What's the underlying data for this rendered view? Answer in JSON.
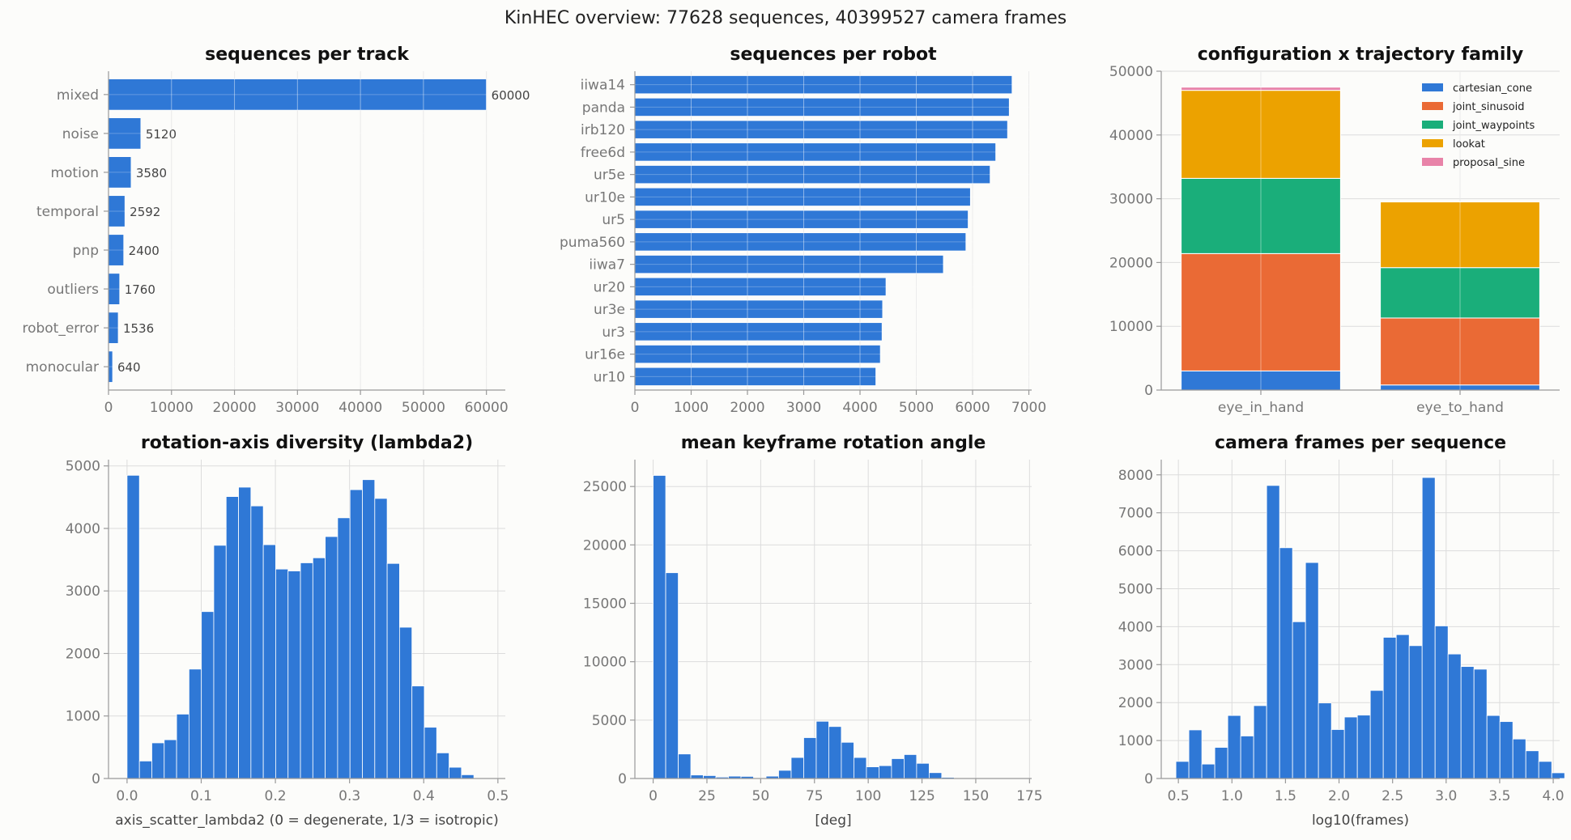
{
  "suptitle": "KinHEC overview: 77628 sequences, 40399527 camera frames",
  "colors": {
    "bar": "#2f78d6",
    "cartesian_cone": "#2f78d6",
    "joint_sinusoid": "#ea6a35",
    "joint_waypoints": "#1aae7a",
    "lookat": "#eca200",
    "proposal_sine": "#e883a8"
  },
  "chart_data": [
    {
      "type": "bar",
      "orientation": "horizontal",
      "title": "sequences per track",
      "categories": [
        "mixed",
        "noise",
        "motion",
        "temporal",
        "pnp",
        "outliers",
        "robot_error",
        "monocular"
      ],
      "values": [
        60000,
        5120,
        3580,
        2592,
        2400,
        1760,
        1536,
        640
      ],
      "data_labels": [
        "60000",
        "5120",
        "3580",
        "2592",
        "2400",
        "1760",
        "1536",
        "640"
      ],
      "xlim": [
        0,
        63000
      ],
      "xticks": [
        0,
        10000,
        20000,
        30000,
        40000,
        50000,
        60000
      ],
      "xtick_labels": [
        "0",
        "10000",
        "20000",
        "30000",
        "40000",
        "50000",
        "60000"
      ],
      "grid": true
    },
    {
      "type": "bar",
      "orientation": "horizontal",
      "title": "sequences per robot",
      "categories": [
        "iiwa14",
        "panda",
        "irb120",
        "free6d",
        "ur5e",
        "ur10e",
        "ur5",
        "puma560",
        "iiwa7",
        "ur20",
        "ur3e",
        "ur3",
        "ur16e",
        "ur10"
      ],
      "values": [
        6700,
        6650,
        6620,
        6410,
        6310,
        5960,
        5920,
        5880,
        5480,
        4460,
        4400,
        4390,
        4360,
        4280
      ],
      "xlim": [
        0,
        7050
      ],
      "xticks": [
        0,
        1000,
        2000,
        3000,
        4000,
        5000,
        6000,
        7000
      ],
      "xtick_labels": [
        "0",
        "1000",
        "2000",
        "3000",
        "4000",
        "5000",
        "6000",
        "7000"
      ],
      "grid": true
    },
    {
      "type": "bar",
      "stacked": true,
      "title": "configuration x trajectory family",
      "categories": [
        "eye_in_hand",
        "eye_to_hand"
      ],
      "series": [
        {
          "name": "cartesian_cone",
          "values": [
            3000,
            800
          ]
        },
        {
          "name": "joint_sinusoid",
          "values": [
            18400,
            10500
          ]
        },
        {
          "name": "joint_waypoints",
          "values": [
            11800,
            7900
          ]
        },
        {
          "name": "lookat",
          "values": [
            13800,
            10300
          ]
        },
        {
          "name": "proposal_sine",
          "values": [
            500,
            0
          ]
        }
      ],
      "ylim": [
        0,
        50000
      ],
      "yticks": [
        0,
        10000,
        20000,
        30000,
        40000,
        50000
      ],
      "ytick_labels": [
        "0",
        "10000",
        "20000",
        "30000",
        "40000",
        "50000"
      ],
      "legend": "top-right",
      "grid": true
    },
    {
      "type": "bar",
      "histogram": true,
      "title": "rotation-axis diversity (lambda2)",
      "xlabel": "axis_scatter_lambda2 (0 = degenerate, 1/3 = isotropic)",
      "bin_start": 0.0,
      "bin_width": 0.0167,
      "values": [
        4850,
        280,
        570,
        620,
        1030,
        1750,
        2670,
        3730,
        4510,
        4660,
        4360,
        3740,
        3350,
        3320,
        3450,
        3530,
        3870,
        4170,
        4620,
        4780,
        4480,
        3440,
        2420,
        1480,
        820,
        410,
        180,
        60
      ],
      "xlim": [
        -0.025,
        0.51
      ],
      "ylim": [
        0,
        5100
      ],
      "xticks": [
        0.0,
        0.1,
        0.2,
        0.3,
        0.4,
        0.5
      ],
      "xtick_labels": [
        "0.0",
        "0.1",
        "0.2",
        "0.3",
        "0.4",
        "0.5"
      ],
      "yticks": [
        0,
        1000,
        2000,
        3000,
        4000,
        5000
      ],
      "ytick_labels": [
        "0",
        "1000",
        "2000",
        "3000",
        "4000",
        "5000"
      ],
      "grid": true
    },
    {
      "type": "bar",
      "histogram": true,
      "title": "mean keyframe rotation angle",
      "xlabel": "[deg]",
      "bin_start": 0,
      "bin_width": 5.833,
      "values": [
        25950,
        17620,
        2100,
        300,
        250,
        120,
        200,
        180,
        20,
        200,
        700,
        1800,
        3500,
        4900,
        4450,
        3100,
        1800,
        1000,
        1100,
        1700,
        2050,
        1300,
        500,
        100,
        30,
        10,
        5,
        0
      ],
      "xlim": [
        -8.5,
        176
      ],
      "ylim": [
        0,
        27300
      ],
      "xticks": [
        0,
        25,
        50,
        75,
        100,
        125,
        150,
        175
      ],
      "xtick_labels": [
        "0",
        "25",
        "50",
        "75",
        "100",
        "125",
        "150",
        "175"
      ],
      "yticks": [
        0,
        5000,
        10000,
        15000,
        20000,
        25000
      ],
      "ytick_labels": [
        "0",
        "5000",
        "10000",
        "15000",
        "20000",
        "25000"
      ],
      "grid": true
    },
    {
      "type": "bar",
      "histogram": true,
      "title": "camera frames per sequence",
      "xlabel": "log10(frames)",
      "bin_start": 0.477,
      "bin_width": 0.121,
      "values": [
        450,
        1280,
        380,
        820,
        1660,
        1120,
        1920,
        7720,
        6080,
        4130,
        5690,
        1990,
        1290,
        1620,
        1670,
        2320,
        3720,
        3790,
        3500,
        7930,
        4020,
        3280,
        2950,
        2880,
        1660,
        1500,
        1040,
        730,
        450,
        150
      ],
      "xlim": [
        0.34,
        4.06
      ],
      "ylim": [
        0,
        8400
      ],
      "xticks": [
        0.5,
        1.0,
        1.5,
        2.0,
        2.5,
        3.0,
        3.5,
        4.0
      ],
      "xtick_labels": [
        "0.5",
        "1.0",
        "1.5",
        "2.0",
        "2.5",
        "3.0",
        "3.5",
        "4.0"
      ],
      "yticks": [
        0,
        1000,
        2000,
        3000,
        4000,
        5000,
        6000,
        7000,
        8000
      ],
      "ytick_labels": [
        "0",
        "1000",
        "2000",
        "3000",
        "4000",
        "5000",
        "6000",
        "7000",
        "8000"
      ],
      "grid": true
    }
  ]
}
